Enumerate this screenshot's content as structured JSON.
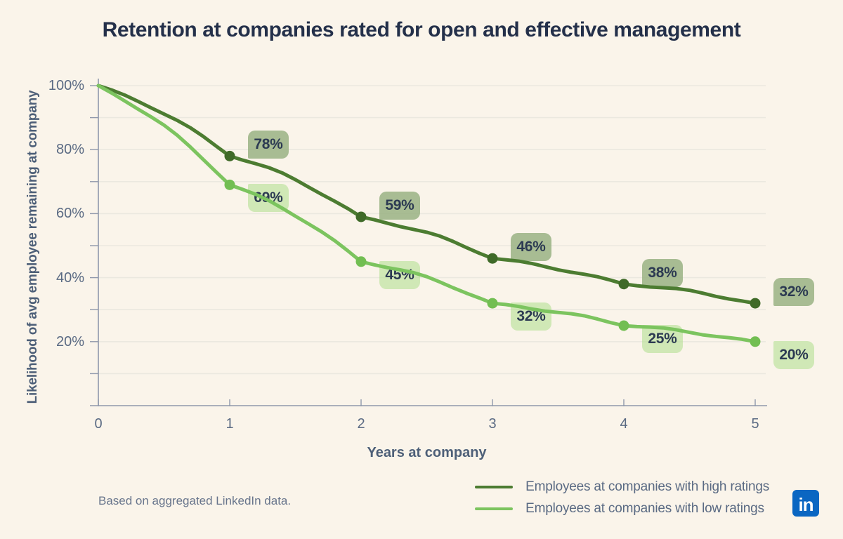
{
  "chart_data": {
    "type": "line",
    "title": "Retention at companies rated for open and effective management",
    "xlabel": "Years at company",
    "ylabel": "Likelihood of avg employee remaining at company",
    "xlim": [
      0,
      5
    ],
    "ylim": [
      0,
      100
    ],
    "x": [
      0,
      1,
      2,
      3,
      4,
      5
    ],
    "xtick_labels": [
      "0",
      "1",
      "2",
      "3",
      "4",
      "5"
    ],
    "ytick_labels": [
      {
        "value": 100,
        "label": "100%"
      },
      {
        "value": 80,
        "label": "80%"
      },
      {
        "value": 60,
        "label": "60%"
      },
      {
        "value": 40,
        "label": "40%"
      },
      {
        "value": 20,
        "label": "20%"
      }
    ],
    "grid": "horizontal gridlines every 10%, minor ticks every 10%",
    "legend_position": "bottom-right",
    "series": [
      {
        "name": "Employees at companies with high ratings",
        "values": [
          100,
          78,
          59,
          46,
          38,
          32
        ],
        "point_labels": [
          "",
          "78%",
          "59%",
          "46%",
          "38%",
          "32%"
        ],
        "color": "#4C7C31",
        "dot_color": "#3F6A28",
        "badge_bg": "rgba(150,176,128,0.82)"
      },
      {
        "name": "Employees at companies with low ratings",
        "values": [
          100,
          69,
          45,
          32,
          25,
          20
        ],
        "point_labels": [
          "",
          "69%",
          "45%",
          "32%",
          "25%",
          "20%"
        ],
        "color": "#7CC45F",
        "dot_color": "#72BE52",
        "badge_bg": "rgba(180,224,146,0.6)"
      }
    ]
  },
  "footer": {
    "note": "Based on aggregated LinkedIn data.",
    "linkedin_logo_text": "in"
  },
  "colors": {
    "background": "#FAF4EA",
    "title_text": "#24304A",
    "axis_text": "#5A6A83",
    "axis_line": "#8F98AB",
    "gridline": "#EBE8DF",
    "badge_text": "#2C3A52",
    "linkedin_blue": "#0A66C2"
  }
}
